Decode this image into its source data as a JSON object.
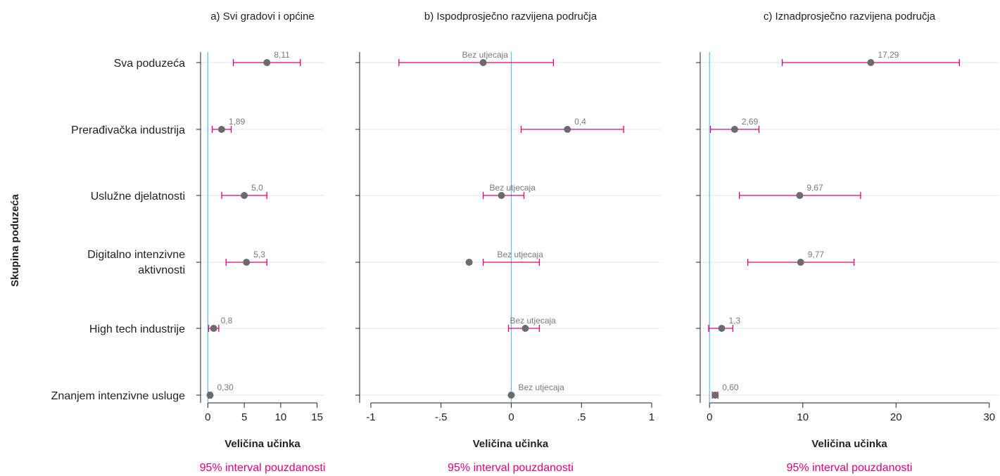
{
  "y_axis_title": "Skupina poduzeća",
  "categories": [
    "Sva poduzeća",
    "Prerađivačka industrija",
    "Uslužne djelatnosti",
    "Digitalno intenzivne aktivnosti",
    "High tech industrije",
    "Znanjem intenzivne usluge"
  ],
  "colors": {
    "point": "#6b6b6e",
    "interval": "#e2007a",
    "reference_line": "#5bc0eb",
    "grid": "#e6e6e6",
    "value_label": "#7a7a7a"
  },
  "chart_data": [
    {
      "type": "scatter",
      "title": "a) Svi gradovi i općine",
      "xlabel": "Veličina učinka",
      "ci_note": "95% interval pouzdanosti",
      "xlim": [
        -1,
        16
      ],
      "xticks": [
        0,
        5,
        10,
        15
      ],
      "xtick_labels": [
        "0",
        "5",
        "10",
        "15"
      ],
      "reference_x": 0,
      "points": [
        {
          "category": "Sva poduzeća",
          "value": 8.11,
          "ci": [
            3.5,
            12.7
          ],
          "label": "8,11"
        },
        {
          "category": "Prerađivačka industrija",
          "value": 1.89,
          "ci": [
            0.6,
            3.2
          ],
          "label": "1,89"
        },
        {
          "category": "Uslužne djelatnosti",
          "value": 5.0,
          "ci": [
            1.9,
            8.1
          ],
          "label": "5,0"
        },
        {
          "category": "Digitalno intenzivne aktivnosti",
          "value": 5.3,
          "ci": [
            2.5,
            8.1
          ],
          "label": "5,3"
        },
        {
          "category": "High tech industrije",
          "value": 0.8,
          "ci": [
            0.1,
            1.5
          ],
          "label": "0,8"
        },
        {
          "category": "Znanjem intenzivne usluge",
          "value": 0.3,
          "ci": [
            0.1,
            0.5
          ],
          "label": "0,30"
        }
      ]
    },
    {
      "type": "scatter",
      "title": "b) Ispodprosječno razvijena područja",
      "xlabel": "Veličina učinka",
      "ci_note": "95% interval pouzdanosti",
      "xlim": [
        -1.08,
        1.07
      ],
      "xticks": [
        -1,
        -0.5,
        0,
        0.5,
        1
      ],
      "xtick_labels": [
        "-1",
        "-.5",
        "0",
        ".5",
        "1"
      ],
      "reference_x": 0,
      "points": [
        {
          "category": "Sva poduzeća",
          "value": -0.2,
          "ci": [
            -0.8,
            0.3
          ],
          "label": "Bez utjecaja"
        },
        {
          "category": "Prerađivačka industrija",
          "value": 0.4,
          "ci": [
            0.07,
            0.8
          ],
          "label": "0,4"
        },
        {
          "category": "Uslužne djelatnosti",
          "value": -0.07,
          "ci": [
            -0.2,
            0.09
          ],
          "label": "Bez utjecaja"
        },
        {
          "category": "Digitalno intenzivne aktivnosti",
          "value": -0.3,
          "ci": [
            -0.2,
            0.2
          ],
          "label": "Bez utjecaja"
        },
        {
          "category": "High tech industrije",
          "value": 0.1,
          "ci": [
            -0.02,
            0.2
          ],
          "label": "Bez utjecaja"
        },
        {
          "category": "Znanjem intenzivne usluge",
          "value": 0.0,
          "ci": [
            0.0,
            0.0
          ],
          "label": "Bez utjecaja"
        }
      ]
    },
    {
      "type": "scatter",
      "title": "c) Iznadprosječno razvijena područja",
      "xlabel": "Veličina učinka",
      "ci_note": "95% interval pouzdanosti",
      "xlim": [
        -1,
        31
      ],
      "xticks": [
        0,
        10,
        20,
        30
      ],
      "xtick_labels": [
        "0",
        "10",
        "20",
        "30"
      ],
      "reference_x": 0,
      "points": [
        {
          "category": "Sva poduzeća",
          "value": 17.29,
          "ci": [
            7.8,
            26.8
          ],
          "label": "17,29"
        },
        {
          "category": "Prerađivačka industrija",
          "value": 2.69,
          "ci": [
            0.1,
            5.3
          ],
          "label": "2,69"
        },
        {
          "category": "Uslužne djelatnosti",
          "value": 9.67,
          "ci": [
            3.2,
            16.2
          ],
          "label": "9,67"
        },
        {
          "category": "Digitalno intenzivne aktivnosti",
          "value": 9.77,
          "ci": [
            4.1,
            15.5
          ],
          "label": "9,77"
        },
        {
          "category": "High tech industrije",
          "value": 1.3,
          "ci": [
            -0.1,
            2.5
          ],
          "label": "1,3"
        },
        {
          "category": "Znanjem intenzivne usluge",
          "value": 0.6,
          "ci": [
            0.3,
            0.9
          ],
          "label": "0,60"
        }
      ]
    }
  ]
}
